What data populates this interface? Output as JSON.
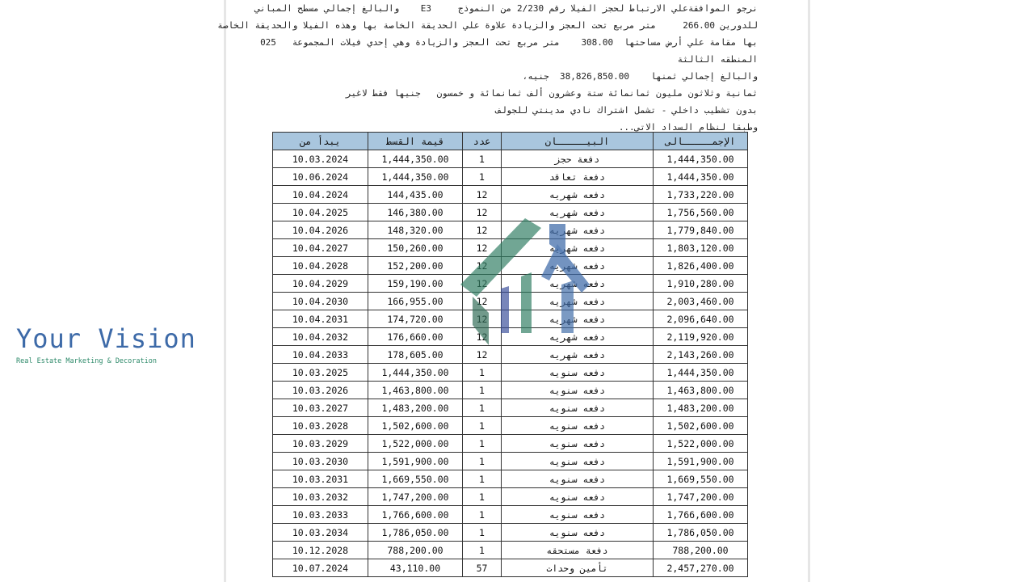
{
  "intro_lines": [
    "نرجو الموافقةعلي الارتباط لحجز الفيلا رقم 2/230 من النموذج     E3    والبالغ إجمالي مسطح المباني",
    "للدورين 266.00     متر مربع تحت العجز والزيادة علاوة علي الحديقة الخاصة بها وهذه الفيلا والحديقة الخاصة",
    "بها مقامة علي أرض مساحتها  308.00    متر مربع تحت العجز والزيادة وهي إحدي فيلات المجموعة   025",
    "المنطقه الثالثة",
    "والبالغ إجمالي ثمنها    38,826,850.00  جنيه،",
    "ثمانية وثلاثون مليون ثمانمائة ستة وعشرون ألف ثمانمائة و خمسون   جنيها فقط لاغير",
    "بدون تشطيب داخلي - تشمل اشتراك نادي مدينتي للجولف",
    "وطبقا لنظام السداد الاتي..."
  ],
  "table": {
    "headers": [
      "يبدأ من",
      "قيمة القسط",
      "عدد",
      "البيـــــان",
      "الإجمـــــالى"
    ],
    "rows": [
      [
        "10.03.2024",
        "1,444,350.00",
        "1",
        "دفعة حجز",
        "1,444,350.00"
      ],
      [
        "10.06.2024",
        "1,444,350.00",
        "1",
        "دفعة تعاقد",
        "1,444,350.00"
      ],
      [
        "10.04.2024",
        "144,435.00",
        "12",
        "دفعه شهريه",
        "1,733,220.00"
      ],
      [
        "10.04.2025",
        "146,380.00",
        "12",
        "دفعه شهريه",
        "1,756,560.00"
      ],
      [
        "10.04.2026",
        "148,320.00",
        "12",
        "دفعه شهريه",
        "1,779,840.00"
      ],
      [
        "10.04.2027",
        "150,260.00",
        "12",
        "دفعه شهريه",
        "1,803,120.00"
      ],
      [
        "10.04.2028",
        "152,200.00",
        "12",
        "دفعه شهريه",
        "1,826,400.00"
      ],
      [
        "10.04.2029",
        "159,190.00",
        "12",
        "دفعه شهريه",
        "1,910,280.00"
      ],
      [
        "10.04.2030",
        "166,955.00",
        "12",
        "دفعه شهريه",
        "2,003,460.00"
      ],
      [
        "10.04.2031",
        "174,720.00",
        "12",
        "دفعه شهريه",
        "2,096,640.00"
      ],
      [
        "10.04.2032",
        "176,660.00",
        "12",
        "دفعه شهريه",
        "2,119,920.00"
      ],
      [
        "10.04.2033",
        "178,605.00",
        "12",
        "دفعه شهريه",
        "2,143,260.00"
      ],
      [
        "10.03.2025",
        "1,444,350.00",
        "1",
        "دفعه سنويه",
        "1,444,350.00"
      ],
      [
        "10.03.2026",
        "1,463,800.00",
        "1",
        "دفعه سنويه",
        "1,463,800.00"
      ],
      [
        "10.03.2027",
        "1,483,200.00",
        "1",
        "دفعه سنويه",
        "1,483,200.00"
      ],
      [
        "10.03.2028",
        "1,502,600.00",
        "1",
        "دفعه سنويه",
        "1,502,600.00"
      ],
      [
        "10.03.2029",
        "1,522,000.00",
        "1",
        "دفعه سنويه",
        "1,522,000.00"
      ],
      [
        "10.03.2030",
        "1,591,900.00",
        "1",
        "دفعه سنويه",
        "1,591,900.00"
      ],
      [
        "10.03.2031",
        "1,669,550.00",
        "1",
        "دفعه سنويه",
        "1,669,550.00"
      ],
      [
        "10.03.2032",
        "1,747,200.00",
        "1",
        "دفعه سنويه",
        "1,747,200.00"
      ],
      [
        "10.03.2033",
        "1,766,600.00",
        "1",
        "دفعه سنويه",
        "1,766,600.00"
      ],
      [
        "10.03.2034",
        "1,786,050.00",
        "1",
        "دفعه سنويه",
        "1,786,050.00"
      ],
      [
        "10.12.2028",
        "788,200.00",
        "1",
        "دفعة مستحقه",
        "788,200.00"
      ],
      [
        "10.07.2024",
        "43,110.00",
        "57",
        "تأمين وحدات",
        "2,457,270.00"
      ]
    ]
  },
  "watermark": {
    "title": "Your Vision",
    "subtitle": "Real Estate Marketing & Decoration"
  },
  "colors": {
    "header_bg": "#a9c6de",
    "watermark_blue": "#3d6aa8",
    "watermark_green": "#2e8a6a"
  }
}
